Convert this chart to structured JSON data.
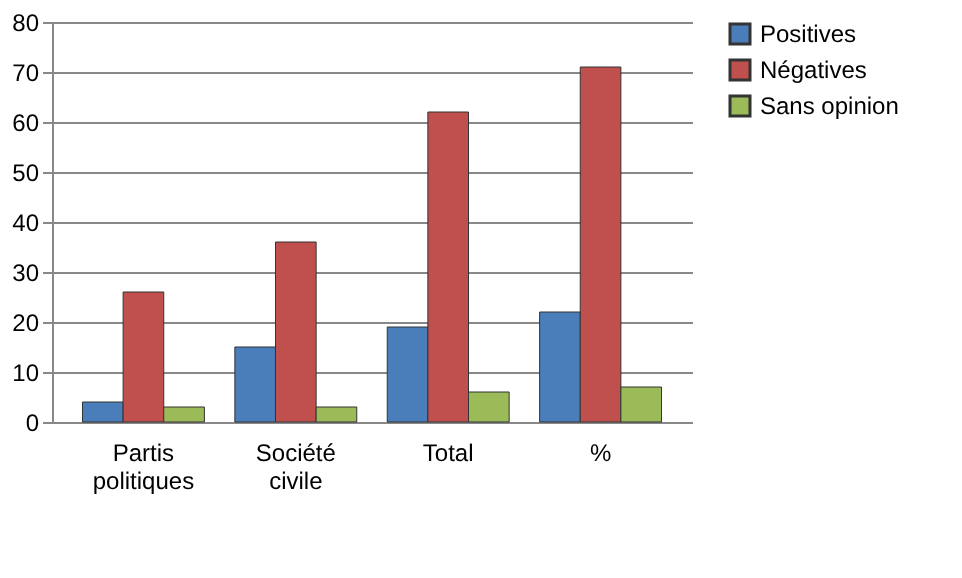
{
  "chart_data": {
    "type": "bar",
    "categories": [
      "Partis politiques",
      "Société civile",
      "Total",
      "%"
    ],
    "series": [
      {
        "name": "Positives",
        "color": "#4a7ebb",
        "values": [
          4,
          15,
          19,
          22
        ]
      },
      {
        "name": "Négatives",
        "color": "#c0504d",
        "values": [
          26,
          36,
          62,
          71
        ]
      },
      {
        "name": "Sans opinion",
        "color": "#9bbb59",
        "values": [
          3,
          3,
          6,
          7
        ]
      }
    ],
    "ylim": [
      0,
      80
    ],
    "yticks": [
      0,
      10,
      20,
      30,
      40,
      50,
      60,
      70,
      80
    ],
    "grid": "y",
    "legend": "right"
  }
}
